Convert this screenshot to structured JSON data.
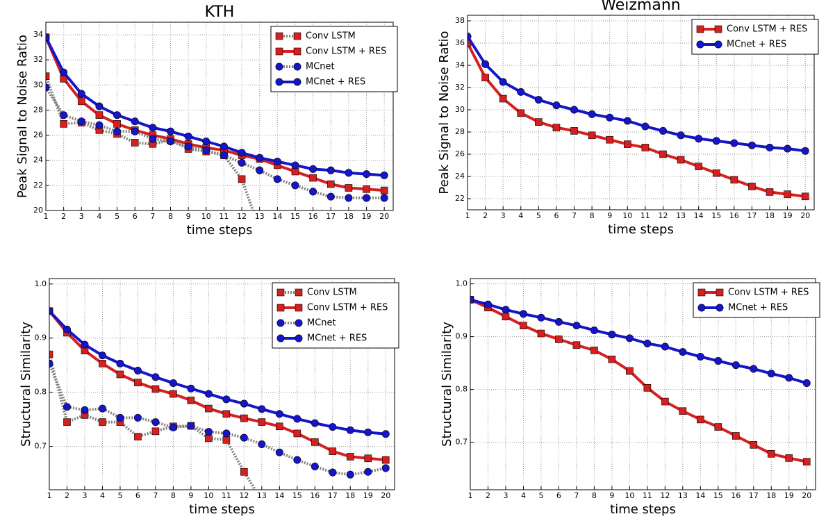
{
  "chart_data": [
    {
      "type": "line",
      "title": "KTH",
      "xlabel": "time steps",
      "ylabel": "Peak Signal to Noise Ratio",
      "x": [
        1,
        2,
        3,
        4,
        5,
        6,
        7,
        8,
        9,
        10,
        11,
        12,
        13,
        14,
        15,
        16,
        17,
        18,
        19,
        20
      ],
      "xlim": [
        1,
        20.5
      ],
      "xticks": [
        1,
        2,
        3,
        4,
        5,
        6,
        7,
        8,
        9,
        10,
        11,
        12,
        13,
        14,
        15,
        16,
        17,
        18,
        19,
        20
      ],
      "ylim": [
        20,
        35
      ],
      "yticks": [
        20,
        22,
        24,
        26,
        28,
        30,
        32,
        34
      ],
      "grid": true,
      "legend": "upper right",
      "series": [
        {
          "name": "Conv LSTM",
          "color": "#d62020",
          "line_color": "#808080",
          "linestyle": "dotted",
          "marker": "square",
          "values": [
            30.7,
            26.9,
            27.0,
            26.4,
            26.1,
            25.4,
            25.3,
            25.6,
            24.9,
            24.7,
            24.4,
            22.5,
            18.5,
            null,
            null,
            null,
            null,
            null,
            null,
            null
          ]
        },
        {
          "name": "Conv LSTM + RES",
          "color": "#d62020",
          "line_color": "#d62020",
          "linestyle": "solid",
          "marker": "square",
          "values": [
            33.8,
            30.5,
            28.7,
            27.6,
            26.9,
            26.4,
            26.0,
            25.7,
            25.3,
            25.0,
            24.8,
            24.4,
            24.1,
            23.6,
            23.1,
            22.6,
            22.1,
            21.8,
            21.7,
            21.6
          ]
        },
        {
          "name": "MCnet",
          "color": "#1515cc",
          "line_color": "#808080",
          "linestyle": "dotted",
          "marker": "circle",
          "values": [
            29.8,
            27.6,
            27.1,
            26.8,
            26.3,
            26.3,
            25.7,
            25.5,
            25.1,
            24.8,
            24.4,
            23.8,
            23.2,
            22.5,
            22.0,
            21.5,
            21.1,
            21.0,
            21.0,
            21.0
          ]
        },
        {
          "name": "MCnet + RES",
          "color": "#1515cc",
          "line_color": "#1515cc",
          "linestyle": "solid",
          "marker": "circle",
          "values": [
            33.8,
            31.0,
            29.3,
            28.3,
            27.6,
            27.1,
            26.6,
            26.3,
            25.9,
            25.5,
            25.1,
            24.6,
            24.2,
            23.9,
            23.6,
            23.3,
            23.2,
            23.0,
            22.9,
            22.8
          ]
        }
      ]
    },
    {
      "type": "line",
      "title": "Weizmann",
      "xlabel": "time steps",
      "ylabel": "Peak Signal to Noise Ratio",
      "x": [
        1,
        2,
        3,
        4,
        5,
        6,
        7,
        8,
        9,
        10,
        11,
        12,
        13,
        14,
        15,
        16,
        17,
        18,
        19,
        20
      ],
      "xlim": [
        1,
        20.5
      ],
      "xticks": [
        1,
        2,
        3,
        4,
        5,
        6,
        7,
        8,
        9,
        10,
        11,
        12,
        13,
        14,
        15,
        16,
        17,
        18,
        19,
        20
      ],
      "ylim": [
        21,
        38.5
      ],
      "yticks": [
        22,
        24,
        26,
        28,
        30,
        32,
        34,
        36,
        38
      ],
      "grid": true,
      "legend": "upper right",
      "series": [
        {
          "name": "Conv LSTM + RES",
          "color": "#d62020",
          "line_color": "#d62020",
          "linestyle": "solid",
          "marker": "square",
          "values": [
            36.0,
            32.9,
            31.0,
            29.7,
            28.9,
            28.4,
            28.1,
            27.7,
            27.3,
            26.9,
            26.6,
            26.0,
            25.5,
            24.9,
            24.3,
            23.7,
            23.1,
            22.6,
            22.4,
            22.2
          ]
        },
        {
          "name": "MCnet + RES",
          "color": "#1515cc",
          "line_color": "#1515cc",
          "linestyle": "solid",
          "marker": "circle",
          "values": [
            36.6,
            34.1,
            32.5,
            31.6,
            30.9,
            30.4,
            30.0,
            29.6,
            29.3,
            29.0,
            28.5,
            28.1,
            27.7,
            27.4,
            27.2,
            27.0,
            26.8,
            26.6,
            26.5,
            26.3
          ]
        }
      ]
    },
    {
      "type": "line",
      "xlabel": "time steps",
      "ylabel": "Structural Similarity",
      "x": [
        1,
        2,
        3,
        4,
        5,
        6,
        7,
        8,
        9,
        10,
        11,
        12,
        13,
        14,
        15,
        16,
        17,
        18,
        19,
        20
      ],
      "xlim": [
        1,
        20.5
      ],
      "xticks": [
        1,
        2,
        3,
        4,
        5,
        6,
        7,
        8,
        9,
        10,
        11,
        12,
        13,
        14,
        15,
        16,
        17,
        18,
        19,
        20
      ],
      "ylim": [
        0.62,
        1.01
      ],
      "yticks": [
        0.7,
        0.8,
        0.9,
        {
          "value": 1,
          "label": "1.0"
        }
      ],
      "grid": true,
      "legend": "upper right",
      "series": [
        {
          "name": "Conv LSTM",
          "color": "#d62020",
          "line_color": "#808080",
          "linestyle": "dotted",
          "marker": "square",
          "values": [
            0.87,
            0.745,
            0.758,
            0.745,
            0.745,
            0.718,
            0.728,
            0.737,
            0.738,
            0.715,
            0.712,
            0.653,
            0.6,
            null,
            null,
            null,
            null,
            null,
            null,
            null
          ]
        },
        {
          "name": "Conv LSTM + RES",
          "color": "#d62020",
          "line_color": "#d62020",
          "linestyle": "solid",
          "marker": "square",
          "values": [
            0.95,
            0.91,
            0.877,
            0.853,
            0.833,
            0.818,
            0.806,
            0.797,
            0.785,
            0.77,
            0.76,
            0.752,
            0.745,
            0.737,
            0.724,
            0.708,
            0.691,
            0.681,
            0.678,
            0.675
          ]
        },
        {
          "name": "MCnet",
          "color": "#1515cc",
          "line_color": "#808080",
          "linestyle": "dotted",
          "marker": "circle",
          "values": [
            0.853,
            0.773,
            0.767,
            0.77,
            0.753,
            0.753,
            0.745,
            0.735,
            0.738,
            0.727,
            0.724,
            0.716,
            0.704,
            0.689,
            0.675,
            0.663,
            0.652,
            0.648,
            0.653,
            0.66
          ]
        },
        {
          "name": "MCnet + RES",
          "color": "#1515cc",
          "line_color": "#1515cc",
          "linestyle": "solid",
          "marker": "circle",
          "values": [
            0.95,
            0.916,
            0.888,
            0.868,
            0.853,
            0.84,
            0.828,
            0.817,
            0.807,
            0.797,
            0.787,
            0.779,
            0.769,
            0.76,
            0.751,
            0.743,
            0.736,
            0.73,
            0.726,
            0.723
          ]
        }
      ]
    },
    {
      "type": "line",
      "xlabel": "time steps",
      "ylabel": "Structural Similarity",
      "x": [
        1,
        2,
        3,
        4,
        5,
        6,
        7,
        8,
        9,
        10,
        11,
        12,
        13,
        14,
        15,
        16,
        17,
        18,
        19,
        20
      ],
      "xlim": [
        1,
        20.5
      ],
      "xticks": [
        1,
        2,
        3,
        4,
        5,
        6,
        7,
        8,
        9,
        10,
        11,
        12,
        13,
        14,
        15,
        16,
        17,
        18,
        19,
        20
      ],
      "ylim": [
        0.61,
        1.01
      ],
      "yticks": [
        0.7,
        0.8,
        0.9,
        {
          "value": 1,
          "label": "1.0"
        }
      ],
      "grid": true,
      "legend": "upper right",
      "series": [
        {
          "name": "Conv LSTM + RES",
          "color": "#d62020",
          "line_color": "#d62020",
          "linestyle": "solid",
          "marker": "square",
          "values": [
            0.97,
            0.955,
            0.938,
            0.921,
            0.906,
            0.895,
            0.884,
            0.874,
            0.857,
            0.835,
            0.803,
            0.777,
            0.759,
            0.743,
            0.729,
            0.712,
            0.695,
            0.678,
            0.67,
            0.663
          ]
        },
        {
          "name": "MCnet + RES",
          "color": "#1515cc",
          "line_color": "#1515cc",
          "linestyle": "solid",
          "marker": "circle",
          "values": [
            0.97,
            0.961,
            0.951,
            0.943,
            0.936,
            0.928,
            0.921,
            0.912,
            0.904,
            0.897,
            0.887,
            0.881,
            0.871,
            0.862,
            0.854,
            0.846,
            0.839,
            0.83,
            0.822,
            0.812
          ]
        }
      ]
    }
  ]
}
